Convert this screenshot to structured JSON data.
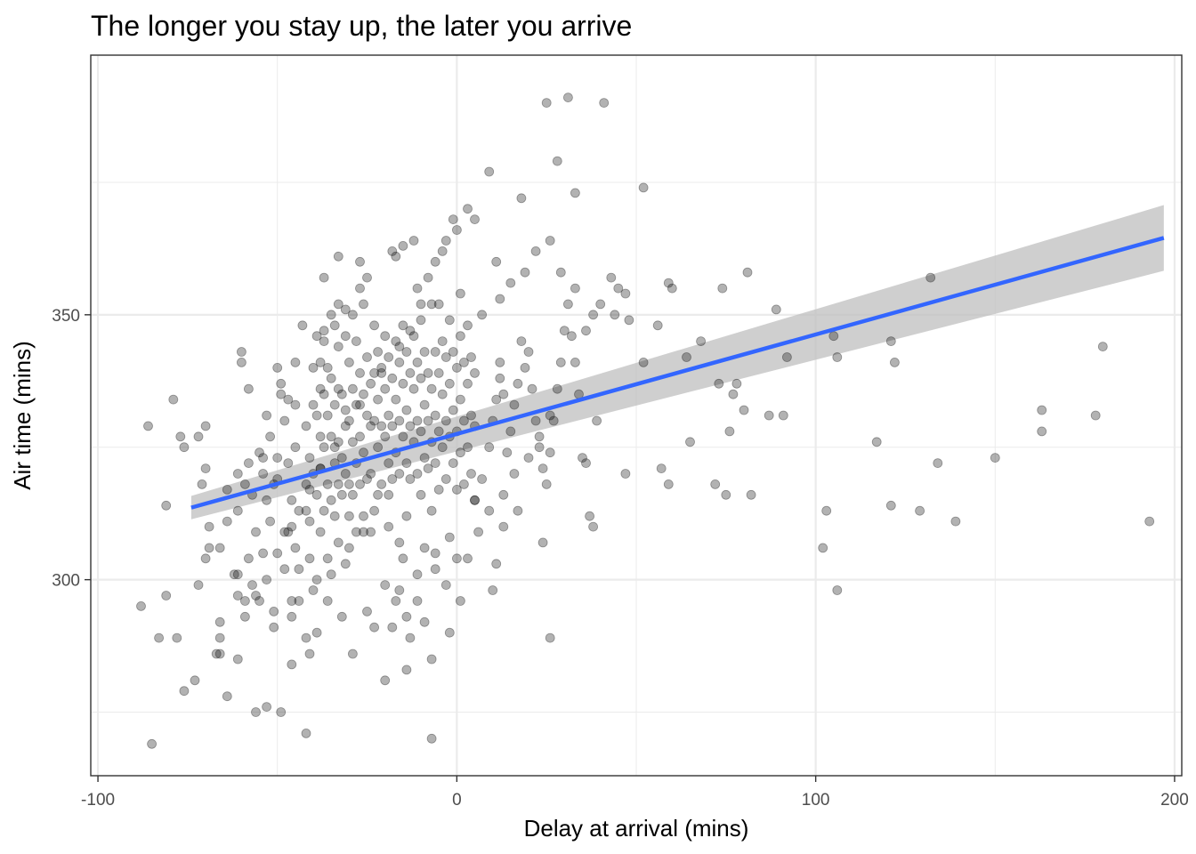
{
  "chart_data": {
    "type": "scatter",
    "title": "The longer you stay up, the later you arrive",
    "xlabel": "Delay at arrival (mins)",
    "ylabel": "Air time (mins)",
    "xlim": [
      -102,
      202
    ],
    "ylim": [
      263,
      399
    ],
    "x_ticks": [
      -100,
      0,
      100,
      200
    ],
    "x_tick_labels": [
      "-100",
      "0",
      "100",
      "200"
    ],
    "y_ticks": [
      300,
      350
    ],
    "y_tick_labels": [
      "300",
      "350"
    ],
    "grid": true,
    "theme": "bw",
    "point_color": "#000000",
    "point_alpha": 0.3,
    "colors": {
      "fit_line": "#3366FF",
      "confidence_band": "#bfbfbf",
      "panel_border": "#333333",
      "grid": "#ebebeb"
    },
    "trend": {
      "method": "lm",
      "x": [
        -74,
        197
      ],
      "y": [
        313.6,
        364.5
      ],
      "ci_low": [
        311.4,
        358.3
      ],
      "ci_high": [
        315.8,
        370.7
      ]
    },
    "points": [
      [
        -86,
        329
      ],
      [
        -81,
        314
      ],
      [
        -81,
        297
      ],
      [
        -83,
        289
      ],
      [
        -78,
        289
      ],
      [
        -88,
        295
      ],
      [
        -85,
        269
      ],
      [
        -77,
        327
      ],
      [
        -76,
        325
      ],
      [
        -79,
        334
      ],
      [
        -76,
        279
      ],
      [
        -72,
        327
      ],
      [
        -70,
        321
      ],
      [
        -70,
        329
      ],
      [
        -71,
        318
      ],
      [
        -69,
        310
      ],
      [
        -70,
        304
      ],
      [
        -72,
        299
      ],
      [
        -66,
        306
      ],
      [
        -66,
        286
      ],
      [
        -66,
        292
      ],
      [
        -67,
        286
      ],
      [
        -64,
        317
      ],
      [
        -64,
        311
      ],
      [
        -61,
        320
      ],
      [
        -61,
        313
      ],
      [
        -61,
        301
      ],
      [
        -61,
        297
      ],
      [
        -60,
        343
      ],
      [
        -60,
        341
      ],
      [
        -59,
        318
      ],
      [
        -59,
        296
      ],
      [
        -61,
        285
      ],
      [
        -58,
        336
      ],
      [
        -58,
        322
      ],
      [
        -57,
        316
      ],
      [
        -57,
        299
      ],
      [
        -56,
        309
      ],
      [
        -55,
        324
      ],
      [
        -54,
        323
      ],
      [
        -54,
        320
      ],
      [
        -54,
        305
      ],
      [
        -53,
        315
      ],
      [
        -53,
        331
      ],
      [
        -52,
        327
      ],
      [
        -52,
        311
      ],
      [
        -51,
        318
      ],
      [
        -51,
        294
      ],
      [
        -50,
        340
      ],
      [
        -50,
        323
      ],
      [
        -50,
        319
      ],
      [
        -49,
        337
      ],
      [
        -49,
        335
      ],
      [
        -48,
        330
      ],
      [
        -48,
        309
      ],
      [
        -48,
        302
      ],
      [
        -47,
        334
      ],
      [
        -47,
        322
      ],
      [
        -46,
        315
      ],
      [
        -46,
        310
      ],
      [
        -46,
        296
      ],
      [
        -45,
        341
      ],
      [
        -45,
        333
      ],
      [
        -45,
        325
      ],
      [
        -45,
        306
      ],
      [
        -44,
        302
      ],
      [
        -44,
        296
      ],
      [
        -43,
        348
      ],
      [
        -42,
        329
      ],
      [
        -42,
        318
      ],
      [
        -42,
        313
      ],
      [
        -41,
        323
      ],
      [
        -41,
        311
      ],
      [
        -41,
        304
      ],
      [
        -40,
        340
      ],
      [
        -40,
        333
      ],
      [
        -40,
        320
      ],
      [
        -40,
        298
      ],
      [
        -39,
        346
      ],
      [
        -39,
        331
      ],
      [
        -39,
        316
      ],
      [
        -39,
        300
      ],
      [
        -39,
        290
      ],
      [
        -38,
        341
      ],
      [
        -38,
        336
      ],
      [
        -38,
        327
      ],
      [
        -38,
        321
      ],
      [
        -38,
        309
      ],
      [
        -37,
        357
      ],
      [
        -37,
        345
      ],
      [
        -37,
        335
      ],
      [
        -37,
        325
      ],
      [
        -37,
        313
      ],
      [
        -36,
        340
      ],
      [
        -36,
        331
      ],
      [
        -36,
        318
      ],
      [
        -36,
        304
      ],
      [
        -35,
        338
      ],
      [
        -35,
        327
      ],
      [
        -35,
        315
      ],
      [
        -35,
        301
      ],
      [
        -34,
        348
      ],
      [
        -34,
        333
      ],
      [
        -34,
        322
      ],
      [
        -34,
        312
      ],
      [
        -33,
        344
      ],
      [
        -33,
        336
      ],
      [
        -33,
        326
      ],
      [
        -33,
        318
      ],
      [
        -33,
        307
      ],
      [
        -32,
        335
      ],
      [
        -32,
        323
      ],
      [
        -32,
        316
      ],
      [
        -31,
        346
      ],
      [
        -31,
        332
      ],
      [
        -31,
        320
      ],
      [
        -31,
        303
      ],
      [
        -30,
        341
      ],
      [
        -30,
        330
      ],
      [
        -30,
        318
      ],
      [
        -30,
        312
      ],
      [
        -29,
        350
      ],
      [
        -29,
        336
      ],
      [
        -29,
        326
      ],
      [
        -29,
        316
      ],
      [
        -28,
        345
      ],
      [
        -28,
        333
      ],
      [
        -28,
        322
      ],
      [
        -28,
        309
      ],
      [
        -27,
        339
      ],
      [
        -27,
        327
      ],
      [
        -27,
        318
      ],
      [
        -26,
        352
      ],
      [
        -26,
        335
      ],
      [
        -26,
        324
      ],
      [
        -26,
        312
      ],
      [
        -25,
        342
      ],
      [
        -25,
        331
      ],
      [
        -25,
        319
      ],
      [
        -24,
        329
      ],
      [
        -24,
        320
      ],
      [
        -24,
        309
      ],
      [
        -23,
        348
      ],
      [
        -23,
        339
      ],
      [
        -23,
        330
      ],
      [
        -22,
        343
      ],
      [
        -22,
        334
      ],
      [
        -22,
        325
      ],
      [
        -22,
        316
      ],
      [
        -21,
        340
      ],
      [
        -21,
        329
      ],
      [
        -21,
        318
      ],
      [
        -20,
        346
      ],
      [
        -20,
        336
      ],
      [
        -20,
        327
      ],
      [
        -19,
        342
      ],
      [
        -19,
        331
      ],
      [
        -19,
        322
      ],
      [
        -19,
        310
      ],
      [
        -18,
        338
      ],
      [
        -18,
        329
      ],
      [
        -18,
        319
      ],
      [
        -17,
        345
      ],
      [
        -17,
        334
      ],
      [
        -17,
        324
      ],
      [
        -16,
        341
      ],
      [
        -16,
        330
      ],
      [
        -16,
        320
      ],
      [
        -16,
        307
      ],
      [
        -15,
        348
      ],
      [
        -15,
        337
      ],
      [
        -15,
        327
      ],
      [
        -14,
        343
      ],
      [
        -14,
        332
      ],
      [
        -14,
        322
      ],
      [
        -14,
        312
      ],
      [
        -13,
        339
      ],
      [
        -13,
        329
      ],
      [
        -13,
        319
      ],
      [
        -12,
        346
      ],
      [
        -12,
        336
      ],
      [
        -12,
        326
      ],
      [
        -11,
        341
      ],
      [
        -11,
        330
      ],
      [
        -11,
        320
      ],
      [
        -10,
        349
      ],
      [
        -10,
        338
      ],
      [
        -10,
        328
      ],
      [
        -10,
        316
      ],
      [
        -9,
        343
      ],
      [
        -9,
        333
      ],
      [
        -9,
        323
      ],
      [
        -8,
        339
      ],
      [
        -8,
        330
      ],
      [
        -8,
        321
      ],
      [
        -7,
        352
      ],
      [
        -7,
        336
      ],
      [
        -7,
        326
      ],
      [
        -7,
        313
      ],
      [
        -6,
        343
      ],
      [
        -6,
        331
      ],
      [
        -6,
        322
      ],
      [
        -5,
        339
      ],
      [
        -5,
        328
      ],
      [
        -5,
        317
      ],
      [
        -4,
        345
      ],
      [
        -4,
        335
      ],
      [
        -4,
        325
      ],
      [
        -3,
        342
      ],
      [
        -3,
        330
      ],
      [
        -3,
        319
      ],
      [
        -2,
        349
      ],
      [
        -2,
        337
      ],
      [
        -2,
        327
      ],
      [
        -1,
        343
      ],
      [
        -1,
        332
      ],
      [
        -1,
        322
      ],
      [
        0,
        340
      ],
      [
        0,
        328
      ],
      [
        0,
        317
      ],
      [
        1,
        346
      ],
      [
        1,
        334
      ],
      [
        1,
        324
      ],
      [
        2,
        341
      ],
      [
        2,
        330
      ],
      [
        2,
        318
      ],
      [
        3,
        348
      ],
      [
        3,
        337
      ],
      [
        3,
        325
      ],
      [
        4,
        342
      ],
      [
        4,
        331
      ],
      [
        4,
        320
      ],
      [
        5,
        339
      ],
      [
        5,
        329
      ],
      [
        5,
        315
      ],
      [
        -41,
        286
      ],
      [
        -20,
        299
      ],
      [
        -42,
        271
      ],
      [
        -53,
        276
      ],
      [
        -64,
        278
      ],
      [
        -66,
        289
      ],
      [
        -73,
        281
      ],
      [
        -56,
        275
      ],
      [
        -49,
        275
      ],
      [
        -42,
        289
      ],
      [
        -29,
        286
      ],
      [
        -20,
        281
      ],
      [
        -14,
        283
      ],
      [
        -7,
        285
      ],
      [
        -7,
        270
      ],
      [
        -25,
        294
      ],
      [
        -23,
        291
      ],
      [
        -18,
        291
      ],
      [
        -14,
        293
      ],
      [
        -11,
        296
      ],
      [
        -3,
        299
      ],
      [
        -6,
        305
      ],
      [
        -2,
        308
      ],
      [
        0,
        304
      ],
      [
        3,
        304
      ],
      [
        5,
        315
      ],
      [
        7,
        319
      ],
      [
        9,
        325
      ],
      [
        10,
        330
      ],
      [
        11,
        334
      ],
      [
        12,
        338
      ],
      [
        12,
        341
      ],
      [
        13,
        335
      ],
      [
        14,
        324
      ],
      [
        15,
        328
      ],
      [
        16,
        333
      ],
      [
        17,
        337
      ],
      [
        18,
        345
      ],
      [
        19,
        340
      ],
      [
        20,
        343
      ],
      [
        21,
        336
      ],
      [
        22,
        330
      ],
      [
        23,
        325
      ],
      [
        24,
        321
      ],
      [
        25,
        318
      ],
      [
        26,
        324
      ],
      [
        27,
        330
      ],
      [
        28,
        336
      ],
      [
        29,
        341
      ],
      [
        30,
        347
      ],
      [
        31,
        352
      ],
      [
        32,
        346
      ],
      [
        33,
        341
      ],
      [
        34,
        335
      ],
      [
        35,
        323
      ],
      [
        36,
        322
      ],
      [
        37,
        312
      ],
      [
        38,
        310
      ],
      [
        39,
        330
      ],
      [
        43,
        357
      ],
      [
        44,
        350
      ],
      [
        45,
        355
      ],
      [
        47,
        354
      ],
      [
        48,
        349
      ],
      [
        47,
        320
      ],
      [
        52,
        341
      ],
      [
        56,
        348
      ],
      [
        57,
        321
      ],
      [
        59,
        318
      ],
      [
        59,
        356
      ],
      [
        60,
        355
      ],
      [
        64,
        342
      ],
      [
        65,
        326
      ],
      [
        68,
        345
      ],
      [
        72,
        318
      ],
      [
        73,
        337
      ],
      [
        74,
        355
      ],
      [
        75,
        316
      ],
      [
        76,
        328
      ],
      [
        77,
        335
      ],
      [
        78,
        337
      ],
      [
        80,
        332
      ],
      [
        81,
        358
      ],
      [
        82,
        316
      ],
      [
        87,
        331
      ],
      [
        89,
        351
      ],
      [
        91,
        331
      ],
      [
        92,
        342
      ],
      [
        102,
        306
      ],
      [
        103,
        313
      ],
      [
        105,
        346
      ],
      [
        106,
        342
      ],
      [
        106,
        298
      ],
      [
        117,
        326
      ],
      [
        121,
        345
      ],
      [
        121,
        314
      ],
      [
        122,
        341
      ],
      [
        129,
        313
      ],
      [
        132,
        357
      ],
      [
        134,
        322
      ],
      [
        139,
        311
      ],
      [
        150,
        323
      ],
      [
        163,
        332
      ],
      [
        163,
        328
      ],
      [
        178,
        331
      ],
      [
        180,
        344
      ],
      [
        193,
        311
      ],
      [
        25,
        390
      ],
      [
        31,
        391
      ],
      [
        41,
        390
      ],
      [
        28,
        379
      ],
      [
        9,
        377
      ],
      [
        33,
        373
      ],
      [
        52,
        374
      ],
      [
        18,
        372
      ],
      [
        5,
        368
      ],
      [
        0,
        366
      ],
      [
        -4,
        362
      ],
      [
        -12,
        364
      ],
      [
        -15,
        363
      ],
      [
        -18,
        362
      ],
      [
        -25,
        357
      ],
      [
        -27,
        355
      ],
      [
        -31,
        351
      ],
      [
        -33,
        352
      ],
      [
        -35,
        350
      ],
      [
        -37,
        347
      ],
      [
        -27,
        360
      ],
      [
        -33,
        361
      ],
      [
        -17,
        361
      ],
      [
        -11,
        355
      ],
      [
        -5,
        352
      ],
      [
        1,
        354
      ],
      [
        7,
        350
      ],
      [
        12,
        353
      ],
      [
        15,
        356
      ],
      [
        19,
        358
      ],
      [
        22,
        362
      ],
      [
        26,
        364
      ],
      [
        29,
        358
      ],
      [
        33,
        355
      ],
      [
        40,
        352
      ],
      [
        38,
        350
      ],
      [
        36,
        347
      ],
      [
        -3,
        364
      ],
      [
        -1,
        368
      ],
      [
        3,
        370
      ],
      [
        11,
        360
      ],
      [
        -6,
        360
      ],
      [
        -8,
        357
      ],
      [
        -10,
        352
      ],
      [
        -13,
        347
      ],
      [
        -16,
        344
      ],
      [
        -21,
        339
      ],
      [
        -24,
        337
      ],
      [
        -27,
        333
      ],
      [
        -31,
        329
      ],
      [
        -34,
        325
      ],
      [
        -38,
        321
      ],
      [
        -41,
        317
      ],
      [
        -44,
        313
      ],
      [
        -47,
        309
      ],
      [
        -50,
        305
      ],
      [
        -53,
        300
      ],
      [
        -56,
        297
      ],
      [
        -59,
        293
      ],
      [
        1,
        296
      ],
      [
        -17,
        296
      ],
      [
        -11,
        301
      ],
      [
        -15,
        304
      ],
      [
        -30,
        306
      ],
      [
        -26,
        309
      ],
      [
        -23,
        313
      ],
      [
        -19,
        316
      ],
      [
        -6,
        302
      ],
      [
        -9,
        306
      ],
      [
        6,
        309
      ],
      [
        9,
        313
      ],
      [
        13,
        316
      ],
      [
        16,
        320
      ],
      [
        20,
        323
      ],
      [
        23,
        327
      ],
      [
        26,
        331
      ],
      [
        10,
        298
      ],
      [
        11,
        303
      ],
      [
        24,
        307
      ],
      [
        17,
        313
      ],
      [
        13,
        310
      ],
      [
        -2,
        290
      ],
      [
        -9,
        292
      ],
      [
        -13,
        289
      ],
      [
        -16,
        298
      ],
      [
        -32,
        293
      ],
      [
        -36,
        296
      ],
      [
        -46,
        293
      ],
      [
        -51,
        291
      ],
      [
        -55,
        296
      ],
      [
        -62,
        301
      ],
      [
        -58,
        304
      ],
      [
        26,
        289
      ],
      [
        -46,
        284
      ],
      [
        -69,
        306
      ]
    ]
  }
}
